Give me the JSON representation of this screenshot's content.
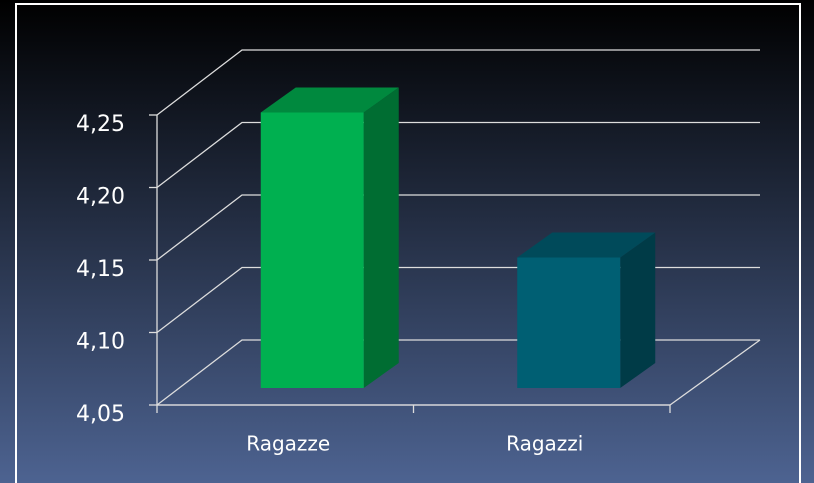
{
  "chart_data": {
    "type": "bar3d",
    "categories": [
      "Ragazze",
      "Ragazzi"
    ],
    "series": [
      {
        "values": [
          4.24,
          4.14
        ],
        "colors": [
          "#00b050",
          "#005f73"
        ]
      }
    ],
    "ylim": [
      4.05,
      4.25
    ],
    "yticks": [
      {
        "value": 4.05,
        "label": "4,05"
      },
      {
        "value": 4.1,
        "label": "4,10"
      },
      {
        "value": 4.15,
        "label": "4,15"
      },
      {
        "value": 4.2,
        "label": "4,20"
      },
      {
        "value": 4.25,
        "label": "4,25"
      }
    ],
    "grid": true
  }
}
